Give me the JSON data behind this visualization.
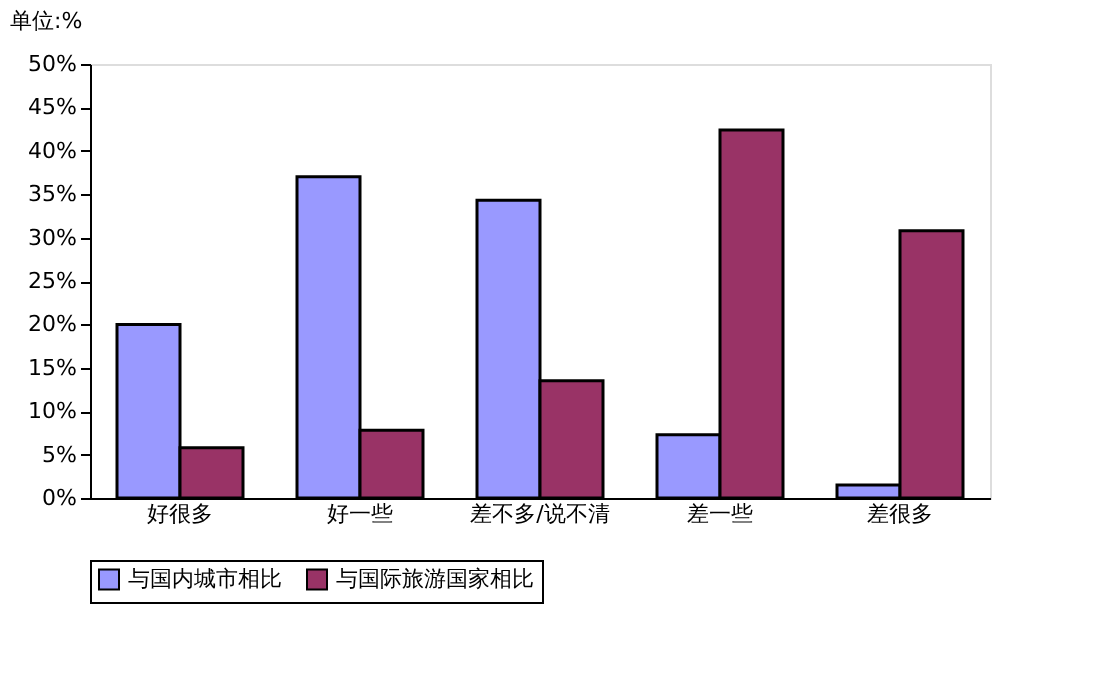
{
  "chart_data": {
    "type": "bar",
    "title": "单位:%",
    "categories": [
      "好很多",
      "好一些",
      "差不多/说不清",
      "差一些",
      "差很多"
    ],
    "series": [
      {
        "name": "与国内城市相比",
        "color": "#9999ff",
        "values": [
          20.0,
          37.0,
          34.3,
          7.3,
          1.5
        ]
      },
      {
        "name": "与国际旅游国家相比",
        "color": "#993366",
        "values": [
          5.8,
          7.8,
          13.5,
          42.4,
          30.8
        ]
      }
    ],
    "ylim": [
      0,
      50
    ],
    "yticks": [
      {
        "value": 0,
        "label": "0%"
      },
      {
        "value": 5,
        "label": "5%"
      },
      {
        "value": 10,
        "label": "10%"
      },
      {
        "value": 15,
        "label": "15%"
      },
      {
        "value": 20,
        "label": "20%"
      },
      {
        "value": 25,
        "label": "25%"
      },
      {
        "value": 30,
        "label": "30%"
      },
      {
        "value": 35,
        "label": "35%"
      },
      {
        "value": 40,
        "label": "40%"
      },
      {
        "value": 45,
        "label": "45%"
      },
      {
        "value": 50,
        "label": "50%"
      }
    ],
    "grid": false,
    "legend": "bottom"
  }
}
